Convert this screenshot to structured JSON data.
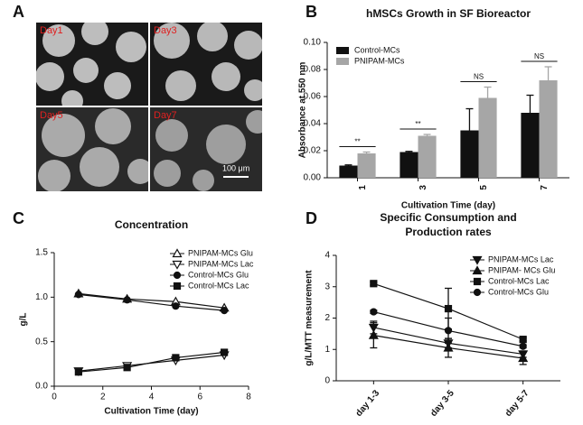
{
  "panel_a": {
    "panel_label": "A",
    "images": [
      "Day1",
      "Day3",
      "Day5",
      "Day7"
    ],
    "scale_bar": "100 μm"
  },
  "chart_data": [
    {
      "type": "bar",
      "panel_label": "B",
      "title": "hMSCs Growth in SF Bioreactor",
      "x_label": "Cultivation Time (day)",
      "y_label": "Absorbance at 550 nm",
      "categories": [
        "1",
        "3",
        "5",
        "7"
      ],
      "series": [
        {
          "name": "Control-MCs",
          "color": "#111111",
          "values": [
            0.009,
            0.019,
            0.035,
            0.048
          ],
          "errors": [
            0.0005,
            0.0005,
            0.016,
            0.013
          ]
        },
        {
          "name": "PNIPAM-MCs",
          "color": "#a6a6a6",
          "values": [
            0.018,
            0.031,
            0.059,
            0.072
          ],
          "errors": [
            0.001,
            0.001,
            0.008,
            0.01
          ]
        }
      ],
      "annotations": [
        "**",
        "**",
        "NS",
        "NS"
      ],
      "ylim": [
        0,
        0.1
      ],
      "yticks": [
        {
          "value": 0,
          "label": "0.00"
        },
        {
          "value": 0.02,
          "label": "0.02"
        },
        {
          "value": 0.04,
          "label": "0.04"
        },
        {
          "value": 0.06,
          "label": "0.06"
        },
        {
          "value": 0.08,
          "label": "0.08"
        },
        {
          "value": 0.1,
          "label": "0.10"
        }
      ],
      "legend": "upper left"
    },
    {
      "type": "line",
      "panel_label": "C",
      "title": "Concentration",
      "x_label": "Cultivation Time (day)",
      "y_label": "g/L",
      "x": [
        1,
        3,
        5,
        7
      ],
      "series": [
        {
          "name": "PNIPAM-MCs Glu",
          "color": "#111111",
          "marker": "triangle-up-open",
          "values": [
            1.04,
            0.98,
            0.95,
            0.88
          ]
        },
        {
          "name": "PNIPAM-MCs Lac",
          "color": "#111111",
          "marker": "triangle-down-open",
          "values": [
            0.17,
            0.23,
            0.29,
            0.35
          ]
        },
        {
          "name": "Control-MCs Glu",
          "color": "#111111",
          "marker": "circle",
          "values": [
            1.03,
            0.97,
            0.9,
            0.85
          ]
        },
        {
          "name": "Control-MCs Lac",
          "color": "#111111",
          "marker": "square",
          "values": [
            0.16,
            0.21,
            0.32,
            0.38
          ]
        }
      ],
      "xlim": [
        0,
        8
      ],
      "xticks": [
        0,
        2,
        4,
        6,
        8
      ],
      "ylim": [
        0,
        1.5
      ],
      "yticks": [
        {
          "value": 0,
          "label": "0.0"
        },
        {
          "value": 0.5,
          "label": "0.5"
        },
        {
          "value": 1,
          "label": "1.0"
        },
        {
          "value": 1.5,
          "label": "1.5"
        }
      ],
      "legend": "upper right"
    },
    {
      "type": "line",
      "panel_label": "D",
      "title_lines": [
        "Specific Consumption and",
        "Production rates"
      ],
      "y_label": "g/L/MTT measurement",
      "categories": [
        "day 1-3",
        "day 3-5",
        "day 5-7"
      ],
      "series": [
        {
          "name": "PNIPAM-MCs Lac",
          "color": "#111111",
          "marker": "triangle-down",
          "values": [
            1.7,
            1.2,
            0.85
          ],
          "errors": [
            0.2,
            0.15,
            0.1
          ]
        },
        {
          "name": "PNIPAM- MCs Glu",
          "color": "#111111",
          "marker": "triangle-up",
          "values": [
            1.45,
            1.05,
            0.72
          ],
          "errors": [
            0.4,
            0.3,
            0.2
          ]
        },
        {
          "name": "Control-MCs Lac",
          "color": "#111111",
          "marker": "square",
          "values": [
            3.1,
            2.3,
            1.32
          ],
          "errors": [
            0.05,
            0.65,
            0.05
          ]
        },
        {
          "name": "Control-MCs Glu",
          "color": "#111111",
          "marker": "circle",
          "values": [
            2.2,
            1.6,
            1.1
          ],
          "errors": [
            0.05,
            0.4,
            0.05
          ]
        }
      ],
      "ylim": [
        0,
        4
      ],
      "yticks": [
        0,
        1,
        2,
        3,
        4
      ],
      "legend": "upper right"
    }
  ]
}
